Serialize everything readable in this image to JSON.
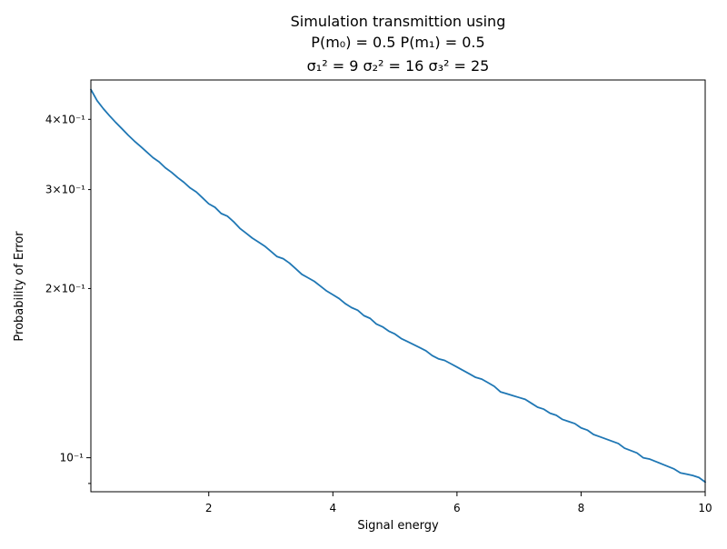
{
  "chart_data": {
    "type": "line",
    "title_lines": [
      "Simulation transmittion using",
      "P(m₀) = 0.5 P(m₁) = 0.5",
      "σ₁² = 9 σ₂² = 16 σ₃² = 25"
    ],
    "xlabel": "Signal energy",
    "ylabel": "Probability of Error",
    "xlim": [
      0.1,
      10
    ],
    "ylim": [
      0.087,
      0.47
    ],
    "yscale": "log",
    "grid": false,
    "x_ticks": [
      {
        "value": 2,
        "label": "2"
      },
      {
        "value": 4,
        "label": "4"
      },
      {
        "value": 6,
        "label": "6"
      },
      {
        "value": 8,
        "label": "8"
      },
      {
        "value": 10,
        "label": "10"
      }
    ],
    "y_major_ticks": [
      {
        "value": 0.1,
        "label": "10⁻¹"
      }
    ],
    "y_minor_ticks": [
      {
        "value": 0.09
      },
      {
        "value": 0.2,
        "label": "2×10⁻¹"
      },
      {
        "value": 0.3,
        "label": "3×10⁻¹"
      },
      {
        "value": 0.4,
        "label": "4×10⁻¹"
      }
    ],
    "series": [
      {
        "color": "#1f77b4",
        "x": [
          0.1,
          0.2,
          0.3,
          0.4,
          0.5,
          0.6,
          0.7,
          0.8,
          0.9,
          1.0,
          1.1,
          1.2,
          1.3,
          1.4,
          1.5,
          1.6,
          1.7,
          1.8,
          1.9,
          2.0,
          2.1,
          2.2,
          2.3,
          2.4,
          2.5,
          2.6,
          2.7,
          2.8,
          2.9,
          3.0,
          3.1,
          3.2,
          3.3,
          3.4,
          3.5,
          3.6,
          3.7,
          3.8,
          3.9,
          4.0,
          4.1,
          4.2,
          4.3,
          4.4,
          4.5,
          4.6,
          4.7,
          4.8,
          4.9,
          5.0,
          5.1,
          5.2,
          5.3,
          5.4,
          5.5,
          5.6,
          5.7,
          5.8,
          5.9,
          6.0,
          6.1,
          6.2,
          6.3,
          6.4,
          6.5,
          6.6,
          6.7,
          6.8,
          6.9,
          7.0,
          7.1,
          7.2,
          7.3,
          7.4,
          7.5,
          7.6,
          7.7,
          7.8,
          7.9,
          8.0,
          8.1,
          8.2,
          8.3,
          8.4,
          8.5,
          8.6,
          8.7,
          8.8,
          8.9,
          9.0,
          9.1,
          9.2,
          9.3,
          9.4,
          9.5,
          9.6,
          9.7,
          9.8,
          9.9,
          10.0
        ],
        "y": [
          0.452,
          0.432,
          0.418,
          0.406,
          0.395,
          0.385,
          0.375,
          0.366,
          0.358,
          0.35,
          0.342,
          0.336,
          0.328,
          0.322,
          0.315,
          0.309,
          0.302,
          0.297,
          0.29,
          0.283,
          0.279,
          0.272,
          0.269,
          0.263,
          0.256,
          0.251,
          0.246,
          0.242,
          0.238,
          0.233,
          0.228,
          0.226,
          0.222,
          0.217,
          0.212,
          0.209,
          0.206,
          0.202,
          0.198,
          0.195,
          0.192,
          0.188,
          0.185,
          0.183,
          0.179,
          0.177,
          0.173,
          0.171,
          0.168,
          0.166,
          0.163,
          0.161,
          0.159,
          0.157,
          0.155,
          0.152,
          0.15,
          0.149,
          0.147,
          0.145,
          0.143,
          0.141,
          0.139,
          0.138,
          0.136,
          0.134,
          0.131,
          0.13,
          0.129,
          0.128,
          0.127,
          0.125,
          0.123,
          0.122,
          0.12,
          0.119,
          0.117,
          0.116,
          0.115,
          0.113,
          0.112,
          0.11,
          0.109,
          0.108,
          0.107,
          0.106,
          0.104,
          0.103,
          0.102,
          0.1,
          0.0995,
          0.0985,
          0.0975,
          0.0965,
          0.0955,
          0.094,
          0.0935,
          0.093,
          0.0922,
          0.0905
        ]
      }
    ]
  }
}
